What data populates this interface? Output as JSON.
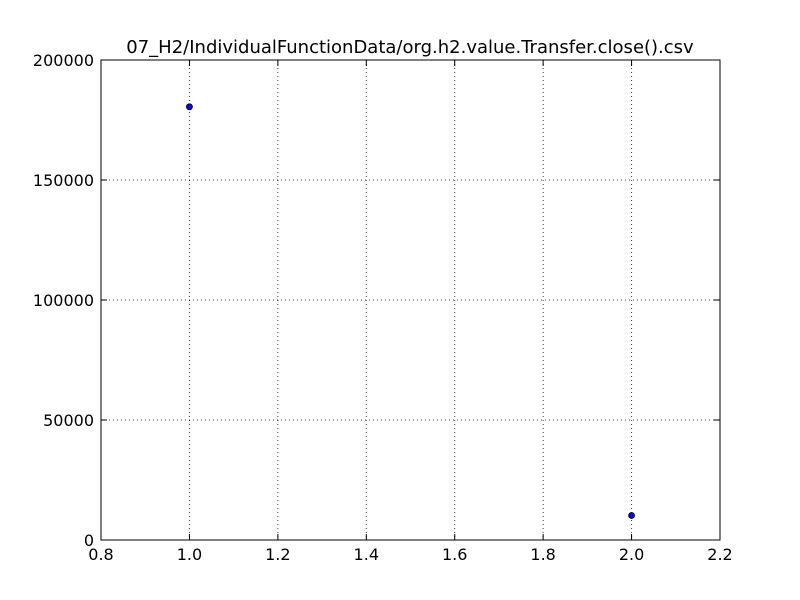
{
  "chart_data": {
    "type": "scatter",
    "title": "07_H2/IndividualFunctionData/org.h2.value.Transfer.close().csv",
    "xlabel": "",
    "ylabel": "",
    "xlim": [
      0.8,
      2.2
    ],
    "ylim": [
      0,
      200000
    ],
    "x_ticks": [
      0.8,
      1.0,
      1.2,
      1.4,
      1.6,
      1.8,
      2.0,
      2.2
    ],
    "x_tick_labels": [
      "0.8",
      "1.0",
      "1.2",
      "1.4",
      "1.6",
      "1.8",
      "2.0",
      "2.2"
    ],
    "y_ticks": [
      0,
      50000,
      100000,
      150000,
      200000
    ],
    "y_tick_labels": [
      "0",
      "50000",
      "100000",
      "150000",
      "200000"
    ],
    "grid": true,
    "legend": "none",
    "series": [
      {
        "x": [
          1.0,
          2.0
        ],
        "y": [
          180500,
          10200
        ],
        "color": "#0000ff"
      }
    ]
  }
}
